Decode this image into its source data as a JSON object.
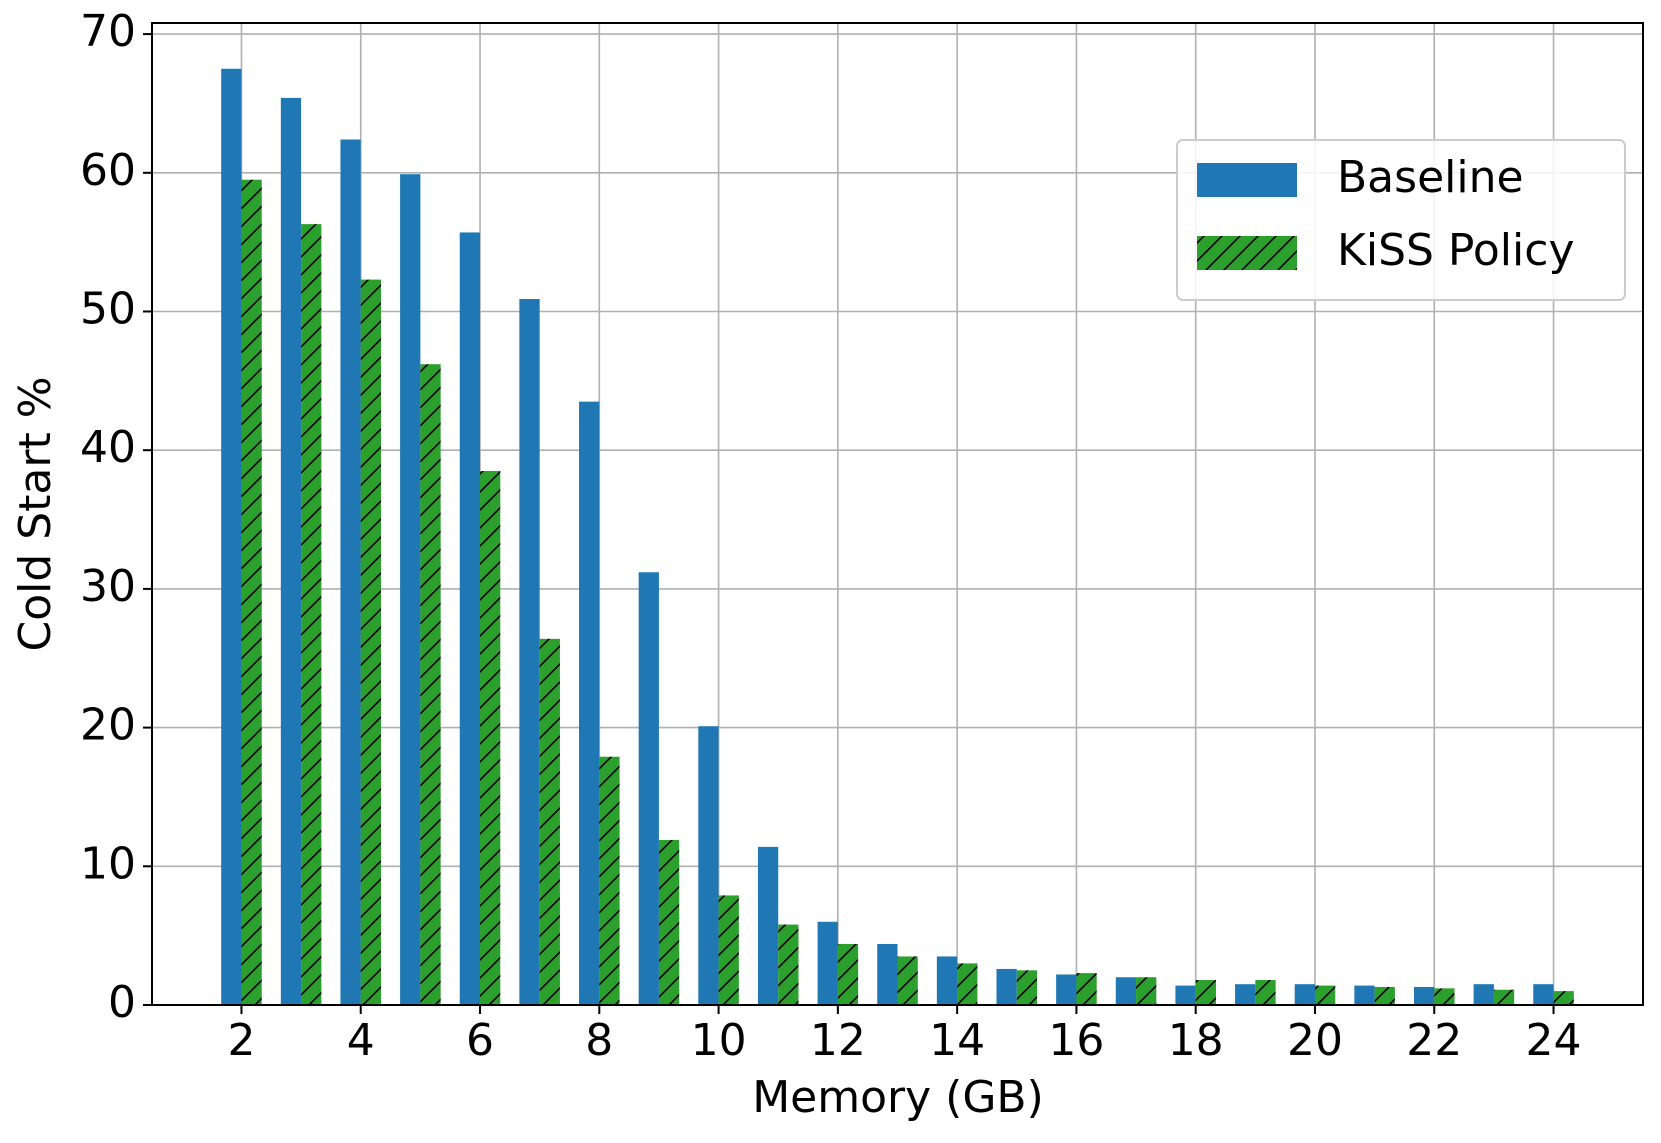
{
  "chart_data": {
    "type": "bar",
    "x_label": "Memory (GB)",
    "y_label": "Cold Start %",
    "x": [
      2,
      3,
      4,
      5,
      6,
      7,
      8,
      9,
      10,
      11,
      12,
      13,
      14,
      15,
      16,
      17,
      18,
      19,
      20,
      21,
      22,
      23,
      24
    ],
    "series": [
      {
        "name": "Baseline",
        "color": "#1f77b4",
        "values": [
          67.5,
          65.4,
          62.4,
          59.9,
          55.7,
          50.9,
          43.5,
          31.2,
          20.1,
          11.4,
          6.0,
          4.4,
          3.5,
          2.6,
          2.2,
          2.0,
          1.4,
          1.5,
          1.5,
          1.4,
          1.3,
          1.5,
          1.5
        ]
      },
      {
        "name": "KiSS Policy",
        "color": "#2ca02c",
        "hatch": "/",
        "values": [
          59.5,
          56.3,
          52.3,
          46.2,
          38.5,
          26.4,
          17.9,
          11.9,
          7.9,
          5.8,
          4.4,
          3.5,
          3.0,
          2.5,
          2.3,
          2.0,
          1.8,
          1.8,
          1.4,
          1.3,
          1.2,
          1.1,
          1.0
        ]
      }
    ],
    "xlim": [
      0.5,
      25.5
    ],
    "ylim": [
      0,
      70.8
    ],
    "xticks": [
      2,
      4,
      6,
      8,
      10,
      12,
      14,
      16,
      18,
      20,
      22,
      24
    ],
    "yticks": [
      0,
      10,
      20,
      30,
      40,
      50,
      60,
      70
    ],
    "grid": true,
    "legend": "upper right"
  }
}
